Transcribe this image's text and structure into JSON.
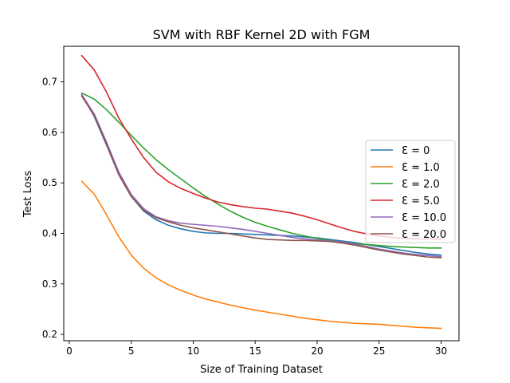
{
  "chart_data": {
    "type": "line",
    "title": "SVM with RBF Kernel 2D with FGM",
    "xlabel": "Size of Training Dataset",
    "ylabel": "Test Loss",
    "xlim": [
      -0.45,
      31.45
    ],
    "ylim": [
      0.1875,
      0.7705
    ],
    "xticks": [
      0,
      5,
      10,
      15,
      20,
      25,
      30
    ],
    "yticks": [
      0.2,
      0.3,
      0.4,
      0.5,
      0.6,
      0.7
    ],
    "ytick_labels": [
      "0.2",
      "0.3",
      "0.4",
      "0.5",
      "0.6",
      "0.7"
    ],
    "grid": false,
    "legend_position": "center-right",
    "x": [
      1,
      2,
      3,
      4,
      5,
      6,
      7,
      8,
      9,
      10,
      11,
      12,
      13,
      14,
      15,
      16,
      17,
      18,
      19,
      20,
      21,
      22,
      23,
      24,
      25,
      26,
      27,
      28,
      29,
      30
    ],
    "series": [
      {
        "name": "Ɛ = 0",
        "color": "#1f77b4",
        "values": [
          0.675,
          0.632,
          0.575,
          0.516,
          0.473,
          0.444,
          0.427,
          0.416,
          0.409,
          0.404,
          0.401,
          0.4,
          0.4,
          0.399,
          0.398,
          0.397,
          0.396,
          0.395,
          0.393,
          0.391,
          0.388,
          0.385,
          0.382,
          0.378,
          0.374,
          0.37,
          0.366,
          0.362,
          0.359,
          0.357
        ]
      },
      {
        "name": "Ɛ = 1.0",
        "color": "#ff7f0e",
        "values": [
          0.503,
          0.478,
          0.437,
          0.393,
          0.357,
          0.331,
          0.312,
          0.298,
          0.287,
          0.278,
          0.27,
          0.264,
          0.258,
          0.253,
          0.248,
          0.244,
          0.24,
          0.236,
          0.232,
          0.229,
          0.226,
          0.224,
          0.222,
          0.221,
          0.22,
          0.218,
          0.216,
          0.214,
          0.213,
          0.212
        ]
      },
      {
        "name": "Ɛ = 2.0",
        "color": "#2ca02c",
        "values": [
          0.678,
          0.666,
          0.645,
          0.62,
          0.594,
          0.569,
          0.546,
          0.526,
          0.508,
          0.49,
          0.473,
          0.458,
          0.444,
          0.432,
          0.422,
          0.414,
          0.407,
          0.4,
          0.395,
          0.39,
          0.386,
          0.383,
          0.38,
          0.378,
          0.376,
          0.374,
          0.373,
          0.372,
          0.371,
          0.371
        ]
      },
      {
        "name": "Ɛ = 5.0",
        "color": "#d62728",
        "values": [
          0.752,
          0.724,
          0.68,
          0.628,
          0.587,
          0.55,
          0.521,
          0.502,
          0.489,
          0.479,
          0.47,
          0.462,
          0.457,
          0.453,
          0.45,
          0.448,
          0.444,
          0.44,
          0.434,
          0.427,
          0.419,
          0.411,
          0.404,
          0.399,
          0.395,
          0.392,
          0.39,
          0.389,
          0.389,
          0.388
        ]
      },
      {
        "name": "Ɛ = 10.0",
        "color": "#9467bd",
        "values": [
          0.675,
          0.637,
          0.581,
          0.521,
          0.477,
          0.449,
          0.433,
          0.425,
          0.42,
          0.418,
          0.416,
          0.414,
          0.411,
          0.408,
          0.404,
          0.4,
          0.396,
          0.392,
          0.389,
          0.387,
          0.385,
          0.383,
          0.379,
          0.374,
          0.369,
          0.365,
          0.361,
          0.358,
          0.356,
          0.354
        ]
      },
      {
        "name": "Ɛ = 20.0",
        "color": "#8c564b",
        "values": [
          0.672,
          0.634,
          0.576,
          0.516,
          0.473,
          0.446,
          0.431,
          0.423,
          0.416,
          0.411,
          0.407,
          0.403,
          0.399,
          0.395,
          0.391,
          0.388,
          0.387,
          0.386,
          0.386,
          0.385,
          0.384,
          0.381,
          0.377,
          0.372,
          0.367,
          0.363,
          0.359,
          0.356,
          0.353,
          0.352
        ]
      }
    ]
  }
}
